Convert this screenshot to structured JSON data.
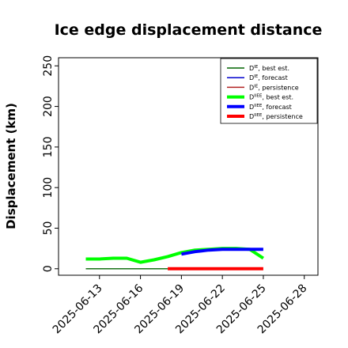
{
  "chart_data": {
    "type": "line",
    "title": "Ice edge displacement distance",
    "xlabel": "",
    "ylabel": "Displacement (km)",
    "ylim": [
      -8,
      260
    ],
    "xlim": [
      "2025-06-10",
      "2025-06-29"
    ],
    "yticks": [
      "0",
      "50",
      "100",
      "150",
      "200",
      "250"
    ],
    "xticks": [
      {
        "date": "2025-06-13",
        "label": "2025-06-13",
        "color": "#000000"
      },
      {
        "date": "2025-06-16",
        "label": "2025-06-16",
        "color": "#000000"
      },
      {
        "date": "2025-06-19",
        "label": "2025-06-19",
        "color": "#228b22"
      },
      {
        "date": "2025-06-22",
        "label": "2025-06-22",
        "color": "#000000"
      },
      {
        "date": "2025-06-25",
        "label": "2025-06-25",
        "color": "#000000"
      },
      {
        "date": "2025-06-28",
        "label": "2025-06-28",
        "color": "#000000"
      }
    ],
    "grid": false,
    "legend_position": "top-right",
    "series": [
      {
        "name": "D^IE, best est.",
        "main": "D",
        "sup": "IE",
        "rest": ", best est.",
        "color": "#006400",
        "thick": false,
        "points": [
          [
            "2025-06-12",
            0
          ],
          [
            "2025-06-13",
            0
          ],
          [
            "2025-06-14",
            0
          ],
          [
            "2025-06-15",
            0
          ],
          [
            "2025-06-16",
            0
          ],
          [
            "2025-06-17",
            0
          ],
          [
            "2025-06-18",
            0
          ]
        ]
      },
      {
        "name": "D^IE, forecast",
        "main": "D",
        "sup": "IE",
        "rest": ", forecast",
        "color": "#0000cd",
        "thick": false,
        "points": []
      },
      {
        "name": "D^IE, persistence",
        "main": "D",
        "sup": "IE",
        "rest": ", persistence",
        "color": "#b22222",
        "thick": false,
        "points": []
      },
      {
        "name": "D^IIEE, best est.",
        "main": "D",
        "sup": "IIEE",
        "rest": ", best est.",
        "color": "#00ff00",
        "thick": true,
        "points": [
          [
            "2025-06-12",
            12
          ],
          [
            "2025-06-13",
            12
          ],
          [
            "2025-06-14",
            13
          ],
          [
            "2025-06-15",
            13
          ],
          [
            "2025-06-16",
            8
          ],
          [
            "2025-06-17",
            11
          ],
          [
            "2025-06-18",
            15
          ],
          [
            "2025-06-19",
            20
          ],
          [
            "2025-06-20",
            23
          ],
          [
            "2025-06-21",
            24
          ],
          [
            "2025-06-22",
            25
          ],
          [
            "2025-06-23",
            25
          ],
          [
            "2025-06-24",
            24
          ],
          [
            "2025-06-25",
            13
          ]
        ]
      },
      {
        "name": "D^IIEE, forecast",
        "main": "D",
        "sup": "IIEE",
        "rest": ", forecast",
        "color": "#0000ff",
        "thick": true,
        "points": [
          [
            "2025-06-19",
            18
          ],
          [
            "2025-06-20",
            21
          ],
          [
            "2025-06-21",
            23
          ],
          [
            "2025-06-22",
            24
          ],
          [
            "2025-06-23",
            24
          ],
          [
            "2025-06-24",
            24
          ],
          [
            "2025-06-25",
            24
          ]
        ]
      },
      {
        "name": "D^IIEE, persistence",
        "main": "D",
        "sup": "IIEE",
        "rest": ", persistence",
        "color": "#ff0000",
        "thick": true,
        "points": [
          [
            "2025-06-18",
            0
          ],
          [
            "2025-06-19",
            0
          ],
          [
            "2025-06-20",
            0
          ],
          [
            "2025-06-21",
            0
          ],
          [
            "2025-06-22",
            0
          ],
          [
            "2025-06-23",
            0
          ],
          [
            "2025-06-24",
            0
          ],
          [
            "2025-06-25",
            0
          ]
        ]
      }
    ]
  }
}
